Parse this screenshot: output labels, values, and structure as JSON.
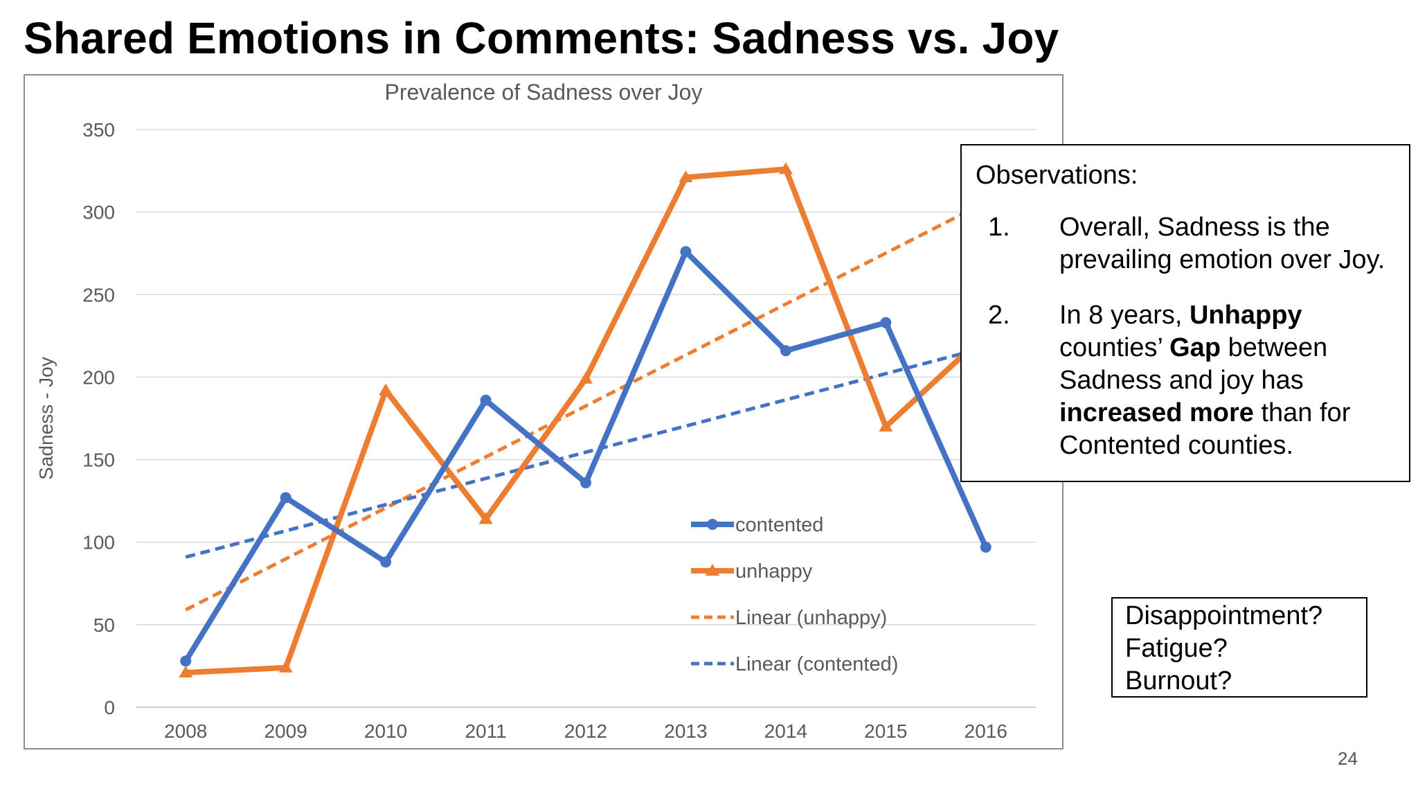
{
  "slide": {
    "title": "Shared Emotions in Comments: Sadness vs. Joy",
    "page_number": "24"
  },
  "observations": {
    "heading": "Observations:",
    "items": [
      {
        "number": "1.",
        "text_1": "Overall, Sadness is the prevailing emotion over Joy."
      },
      {
        "number": "2.",
        "text_1": "In 8 years, ",
        "bold_1": "Unhappy",
        "text_2": " counties’ ",
        "bold_2": "Gap",
        "text_3": " between Sadness and joy has ",
        "bold_3": "increased more",
        "text_4": " than for Contented counties."
      }
    ]
  },
  "questions": [
    "Disappointment?",
    "Fatigue?",
    "Burnout?"
  ],
  "chart_data": {
    "type": "line",
    "title": "Prevalence of Sadness over Joy",
    "xlabel": "",
    "ylabel": "Sadness - Joy",
    "categories": [
      "2008",
      "2009",
      "2010",
      "2011",
      "2012",
      "2013",
      "2014",
      "2015",
      "2016"
    ],
    "ylim": [
      0,
      350
    ],
    "yticks": [
      0,
      50,
      100,
      150,
      200,
      250,
      300,
      350
    ],
    "grid": true,
    "legend_position": "bottom-center (inside plot)",
    "series": [
      {
        "name": "contented",
        "values": [
          28,
          127,
          88,
          186,
          136,
          276,
          216,
          233,
          97
        ],
        "color": "#4472C4",
        "marker": "circle"
      },
      {
        "name": "unhappy",
        "values": [
          21,
          24,
          192,
          114,
          199,
          321,
          326,
          170,
          226
        ],
        "color": "#ED7D31",
        "marker": "triangle"
      }
    ],
    "trendlines": [
      {
        "name": "Linear (unhappy)",
        "color": "#ED7D31",
        "dash": "dashed",
        "start": [
          2008,
          59
        ],
        "end": [
          2016,
          306
        ]
      },
      {
        "name": "Linear (contented)",
        "color": "#4472C4",
        "dash": "dashed",
        "start": [
          2008,
          91
        ],
        "end": [
          2016,
          218
        ]
      }
    ],
    "legend_order": [
      "contented",
      "unhappy",
      "Linear (unhappy)",
      "Linear (contented)"
    ]
  }
}
